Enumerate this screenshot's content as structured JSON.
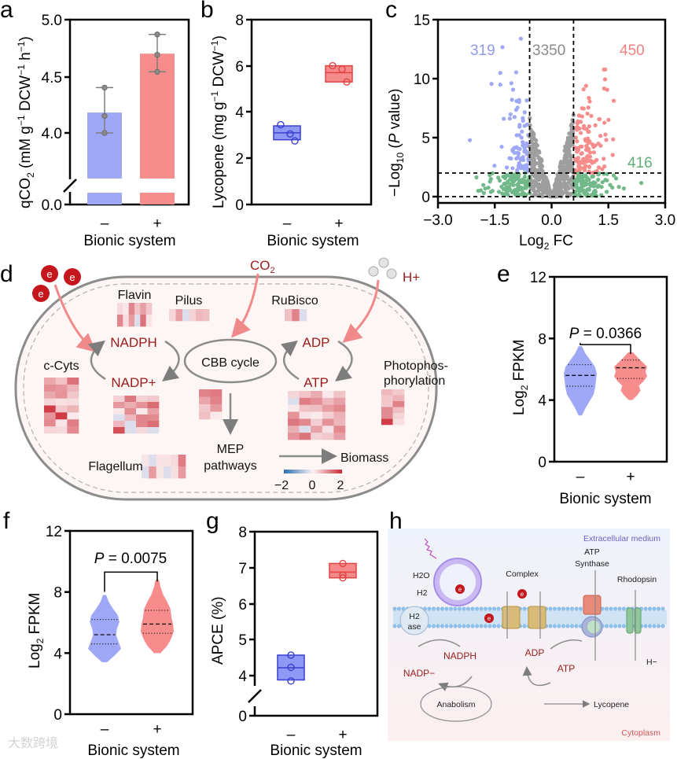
{
  "panel_labels": {
    "a": "a",
    "b": "b",
    "c": "c",
    "d": "d",
    "e": "e",
    "f": "f",
    "g": "g",
    "h": "h"
  },
  "colors": {
    "blue": "#9fa8f7",
    "red": "#f78c8c",
    "gray": "#9e9e9e",
    "green": "#72b98a",
    "darkred": "#9b1b1b",
    "boxblue": "#3b3fd0",
    "boxred": "#e04545"
  },
  "chart_data": [
    {
      "id": "a",
      "type": "bar",
      "categories": [
        "–",
        "+"
      ],
      "values": [
        4.18,
        4.7
      ],
      "points": [
        [
          4.4,
          4.15,
          4.0
        ],
        [
          4.87,
          4.69,
          4.54
        ]
      ],
      "ylabel_parts": [
        "qCO",
        "2",
        " (mM g",
        "−1",
        " DCW",
        "−1",
        " h",
        "−1",
        ")"
      ],
      "xlabel": "Bionic system",
      "yticks": [
        "0.0",
        "4.0",
        "4.5",
        "5.0"
      ],
      "ylim": [
        0,
        5.0
      ],
      "axis_break": [
        0.3,
        3.6
      ]
    },
    {
      "id": "b",
      "type": "box",
      "categories": [
        "–",
        "+"
      ],
      "points": [
        [
          3.45,
          3.05,
          2.75
        ],
        [
          6.0,
          5.85,
          5.3
        ]
      ],
      "box": [
        {
          "q1": 2.8,
          "median": 3.1,
          "q3": 3.4
        },
        {
          "q1": 5.3,
          "median": 5.7,
          "q3": 6.0
        }
      ],
      "ylabel_parts": [
        "Lycopene (mg g",
        "−1",
        " DCW",
        "−1",
        ")"
      ],
      "xlabel": "Bionic system",
      "yticks": [
        "0",
        "2",
        "4",
        "6",
        "8"
      ],
      "ylim": [
        0,
        8
      ]
    },
    {
      "id": "c",
      "type": "scatter",
      "xlabel_parts": [
        "Log",
        "2",
        " FC"
      ],
      "ylabel_parts": [
        "−Log",
        "10",
        " (",
        "P",
        " value)"
      ],
      "xticks": [
        "−3.0",
        "−1.5",
        "0.0",
        "1.5",
        "3.0"
      ],
      "yticks": [
        "0",
        "5",
        "10",
        "15"
      ],
      "xlim": [
        -3,
        3
      ],
      "ylim": [
        -0.5,
        15
      ],
      "thresholds": {
        "log2fc": 0.58,
        "neglog10p": 2
      },
      "groups": [
        {
          "name": "down",
          "count": 319,
          "label": "319",
          "color": "#9fa8f7"
        },
        {
          "name": "unchanged",
          "count": 3350,
          "label": "3350",
          "color": "#9e9e9e"
        },
        {
          "name": "up",
          "count": 450,
          "label": "450",
          "color": "#f78c8c"
        },
        {
          "name": "not-significant",
          "count": 416,
          "label": "416",
          "color": "#72b98a"
        }
      ]
    },
    {
      "id": "e",
      "type": "violin",
      "categories": [
        "–",
        "+"
      ],
      "violins": [
        {
          "min": 3.0,
          "max": 7.5,
          "q1": 4.9,
          "median": 5.6,
          "q3": 6.3,
          "density": [
            0.1,
            0.3,
            0.55,
            0.8,
            0.9,
            0.95,
            1.0,
            0.9,
            0.6,
            0.3,
            0.1
          ]
        },
        {
          "min": 4.0,
          "max": 7.1,
          "q1": 5.4,
          "median": 6.1,
          "q3": 6.6,
          "density": [
            0.1,
            0.4,
            0.6,
            0.5,
            0.8,
            1.0,
            0.9,
            1.0,
            0.7,
            0.4,
            0.15
          ]
        }
      ],
      "pvalue_label": "P",
      "pvalue_text": " = 0.0366",
      "bracket_y": 7.6,
      "ylabel_parts": [
        "Log",
        "2",
        " FPKM"
      ],
      "xlabel": "Bionic system",
      "yticks": [
        "0",
        "4",
        "8",
        "12"
      ],
      "ylim": [
        0,
        12
      ]
    },
    {
      "id": "f",
      "type": "violin",
      "categories": [
        "–",
        "+"
      ],
      "violins": [
        {
          "min": 3.4,
          "max": 7.8,
          "q1": 4.6,
          "median": 5.2,
          "q3": 6.2,
          "density": [
            0.15,
            0.6,
            1.0,
            0.85,
            0.7,
            0.75,
            0.9,
            0.8,
            0.5,
            0.25,
            0.1
          ]
        },
        {
          "min": 4.0,
          "max": 8.8,
          "q1": 5.3,
          "median": 5.9,
          "q3": 6.8,
          "density": [
            0.2,
            0.6,
            0.85,
            1.0,
            0.95,
            0.85,
            0.8,
            0.6,
            0.35,
            0.2,
            0.1
          ]
        }
      ],
      "pvalue_label": "P",
      "pvalue_text": " = 0.0075",
      "bracket_y": 9.3,
      "ylabel_parts": [
        "Log",
        "2",
        " FPKM"
      ],
      "xlabel": "Bionic system",
      "yticks": [
        "0",
        "4",
        "8",
        "12"
      ],
      "ylim": [
        0,
        12
      ]
    },
    {
      "id": "g",
      "type": "box",
      "categories": [
        "–",
        "+"
      ],
      "points": [
        [
          4.57,
          4.23,
          3.85
        ],
        [
          7.12,
          6.8,
          6.72
        ]
      ],
      "box": [
        {
          "q1": 3.88,
          "median": 4.22,
          "q3": 4.57
        },
        {
          "q1": 6.72,
          "median": 6.88,
          "q3": 7.12
        }
      ],
      "ylabel": "APCE (%)",
      "xlabel": "Bionic system",
      "yticks": [
        "0",
        "4",
        "5",
        "6",
        "7",
        "8"
      ],
      "ylim": [
        0,
        8
      ],
      "axis_break": [
        0.5,
        3.6
      ]
    }
  ],
  "diagram_d": {
    "electron": "e",
    "co2": [
      "CO",
      "2"
    ],
    "hplus": "H+",
    "flavin": "Flavin",
    "pilus": "Pilus",
    "rubisco": "RuBisco",
    "nadph": "NADPH",
    "nadp": "NADP+",
    "cbb": "CBB cycle",
    "adp": "ADP",
    "atp": "ATP",
    "ccyts": "c-Cyts",
    "photo1": "Photophos-",
    "photo2": "phorylation",
    "mep1": "MEP",
    "mep2": "pathways",
    "flagellum": "Flagellum",
    "biomass": "Biomass",
    "colorbar_ticks": [
      "−2",
      "0",
      "2"
    ],
    "heatmaps": [
      {
        "name": "flavin",
        "rows": 2,
        "cols": 6
      },
      {
        "name": "pilus",
        "rows": 1,
        "cols": 6
      },
      {
        "name": "rubisco",
        "rows": 1,
        "cols": 3
      },
      {
        "name": "c-cyts",
        "rows": 8,
        "cols": 3
      },
      {
        "name": "nadp",
        "rows": 6,
        "cols": 4
      },
      {
        "name": "cbb",
        "rows": 4,
        "cols": 2
      },
      {
        "name": "atp",
        "rows": 7,
        "cols": 5
      },
      {
        "name": "photophosphorylation",
        "rows": 6,
        "cols": 2
      },
      {
        "name": "flagellum",
        "rows": 2,
        "cols": 6
      }
    ]
  },
  "diagram_h": {
    "extracellular": "Extracellular medium",
    "cytoplasm": "Cytoplasm",
    "h2o": "H2O",
    "h2": "H2",
    "h2ase1": "H2",
    "h2ase2": "ase",
    "complex": "Complex",
    "atp_synthase1": "ATP",
    "atp_synthase2": "Synthase",
    "rhodopsin": "Rhodopsin",
    "electron": "e",
    "nadph": "NADPH",
    "nadp": "NADP−",
    "adp": "ADP",
    "atp": "ATP",
    "hminus": "H−",
    "anabolism": "Anabolism",
    "lycopene": "Lycopene"
  },
  "watermark": "大数跨境"
}
